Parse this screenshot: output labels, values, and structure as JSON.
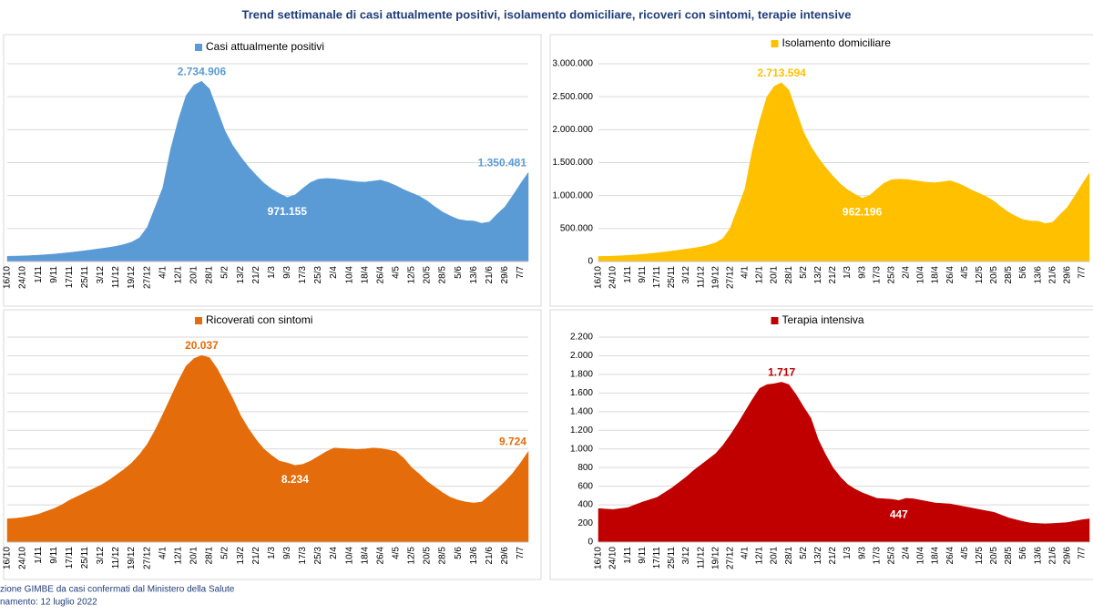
{
  "title": "Trend settimanale di casi attualmente positivi, isolamento domiciliare, ricoveri con sintomi, terapie intensive",
  "footer": {
    "source": "zione GIMBE da casi confermati dal Ministero della Salute",
    "updated": "namento: 12 luglio 2022"
  },
  "chart_data": [
    {
      "type": "area",
      "y_axis_labels": false,
      "grid": true,
      "categories": [
        "16/10",
        null,
        "24/10",
        null,
        "1/11",
        null,
        "9/11",
        null,
        "17/11",
        null,
        "25/11",
        null,
        "3/12",
        null,
        "11/12",
        null,
        "19/12",
        null,
        "27/12",
        null,
        "4/1",
        null,
        "12/1",
        null,
        "20/1",
        null,
        "28/1",
        null,
        "5/2",
        null,
        "13/2",
        null,
        "21/2",
        null,
        "1/3",
        null,
        "9/3",
        null,
        "17/3",
        null,
        "25/3",
        null,
        "2/4",
        null,
        "10/4",
        null,
        "18/4",
        null,
        "26/4",
        null,
        "4/5",
        null,
        "12/5",
        null,
        "20/5",
        null,
        "28/5",
        null,
        "5/6",
        null,
        "13/6",
        null,
        "21/6",
        null,
        "29/6",
        null,
        "7/7",
        null
      ],
      "series": [
        {
          "name": "Casi attualmente positivi",
          "color": "#5b9bd5",
          "values": [
            80000,
            82000,
            85000,
            90000,
            96000,
            104000,
            113000,
            124000,
            136000,
            150000,
            164000,
            180000,
            196000,
            212000,
            232000,
            258000,
            295000,
            360000,
            520000,
            820000,
            1120000,
            1700000,
            2150000,
            2520000,
            2680000,
            2734906,
            2620000,
            2300000,
            1980000,
            1760000,
            1590000,
            1440000,
            1310000,
            1190000,
            1100000,
            1030000,
            971155,
            1010000,
            1110000,
            1200000,
            1250000,
            1260000,
            1255000,
            1240000,
            1225000,
            1210000,
            1205000,
            1220000,
            1235000,
            1200000,
            1150000,
            1090000,
            1040000,
            990000,
            920000,
            830000,
            750000,
            690000,
            640000,
            620000,
            615000,
            580000,
            600000,
            720000,
            830000,
            1000000,
            1180000,
            1350481
          ],
          "value_labels": [
            null,
            null,
            null,
            null,
            null,
            null,
            null,
            null,
            null,
            null,
            null,
            null,
            null,
            null,
            null,
            null,
            null,
            null,
            null,
            null,
            null,
            null,
            null,
            null,
            null,
            "2.734.906",
            null,
            null,
            null,
            null,
            null,
            null,
            null,
            null,
            null,
            null,
            "971.155",
            null,
            null,
            null,
            null,
            null,
            null,
            null,
            null,
            null,
            null,
            null,
            null,
            null,
            null,
            null,
            null,
            null,
            null,
            null,
            null,
            null,
            null,
            null,
            null,
            null,
            null,
            null,
            null,
            null,
            null,
            "1.350.481"
          ]
        }
      ],
      "ylim": [
        0,
        3000000
      ],
      "yticks": [
        0,
        500000,
        1000000,
        1500000,
        2000000,
        2500000,
        3000000
      ]
    },
    {
      "type": "area",
      "y_axis_labels": true,
      "grid": true,
      "categories": [
        "16/10",
        null,
        "24/10",
        null,
        "1/11",
        null,
        "9/11",
        null,
        "17/11",
        null,
        "25/11",
        null,
        "3/12",
        null,
        "11/12",
        null,
        "19/12",
        null,
        "27/12",
        null,
        "4/1",
        null,
        "12/1",
        null,
        "20/1",
        null,
        "28/1",
        null,
        "5/2",
        null,
        "13/2",
        null,
        "21/2",
        null,
        "1/3",
        null,
        "9/3",
        null,
        "17/3",
        null,
        "25/3",
        null,
        "2/4",
        null,
        "10/4",
        null,
        "18/4",
        null,
        "26/4",
        null,
        "4/5",
        null,
        "12/5",
        null,
        "20/5",
        null,
        "28/5",
        null,
        "5/6",
        null,
        "13/6",
        null,
        "21/6",
        null,
        "29/6",
        null,
        "7/7",
        null
      ],
      "series": [
        {
          "name": "Isolamento domiciliare",
          "color": "#ffc000",
          "values": [
            77000,
            79000,
            82000,
            87000,
            93000,
            100000,
            109000,
            119000,
            131000,
            144000,
            158000,
            173000,
            188000,
            204000,
            223000,
            248000,
            285000,
            349000,
            508000,
            806000,
            1104000,
            1682000,
            2130000,
            2500000,
            2660000,
            2713594,
            2600000,
            2282000,
            1963000,
            1744000,
            1575000,
            1427000,
            1298000,
            1179000,
            1090000,
            1021000,
            962196,
            1001000,
            1100000,
            1190000,
            1240000,
            1250000,
            1245000,
            1230000,
            1215000,
            1200000,
            1195000,
            1210000,
            1225000,
            1190000,
            1140000,
            1081000,
            1032000,
            982000,
            913000,
            824000,
            745000,
            685000,
            635000,
            615000,
            611000,
            576000,
            595000,
            714000,
            823000,
            992000,
            1171000,
            1340000
          ],
          "value_labels": [
            null,
            null,
            null,
            null,
            null,
            null,
            null,
            null,
            null,
            null,
            null,
            null,
            null,
            null,
            null,
            null,
            null,
            null,
            null,
            null,
            null,
            null,
            null,
            null,
            null,
            "2.713.594",
            null,
            null,
            null,
            null,
            null,
            null,
            null,
            null,
            null,
            null,
            "962.196",
            null,
            null,
            null,
            null,
            null,
            null,
            null,
            null,
            null,
            null,
            null,
            null,
            null,
            null,
            null,
            null,
            null,
            null,
            null,
            null,
            null,
            null,
            null,
            null,
            null,
            null,
            null,
            null,
            null,
            null,
            null
          ]
        }
      ],
      "ylim": [
        0,
        3000000
      ],
      "yticks": [
        0,
        {
          "value": 500000,
          "label": "500.000"
        },
        {
          "value": 1000000,
          "label": "1.000.000"
        },
        {
          "value": 1500000,
          "label": "1.500.000"
        },
        {
          "value": 2000000,
          "label": "2.000.000"
        },
        {
          "value": 2500000,
          "label": "2.500.000"
        },
        {
          "value": 3000000,
          "label": "3.000.000"
        }
      ]
    },
    {
      "type": "area",
      "y_axis_labels": false,
      "grid": true,
      "categories": [
        "16/10",
        null,
        "24/10",
        null,
        "1/11",
        null,
        "9/11",
        null,
        "17/11",
        null,
        "25/11",
        null,
        "3/12",
        null,
        "11/12",
        null,
        "19/12",
        null,
        "27/12",
        null,
        "4/1",
        null,
        "12/1",
        null,
        "20/1",
        null,
        "28/1",
        null,
        "5/2",
        null,
        "13/2",
        null,
        "21/2",
        null,
        "1/3",
        null,
        "9/3",
        null,
        "17/3",
        null,
        "25/3",
        null,
        "2/4",
        null,
        "10/4",
        null,
        "18/4",
        null,
        "26/4",
        null,
        "4/5",
        null,
        "12/5",
        null,
        "20/5",
        null,
        "28/5",
        null,
        "5/6",
        null,
        "13/6",
        null,
        "21/6",
        null,
        "29/6",
        null,
        "7/7",
        null
      ],
      "series": [
        {
          "name": "Ricoverati con sintomi",
          "color": "#e46c0a",
          "values": [
            2500,
            2550,
            2650,
            2800,
            3000,
            3300,
            3600,
            4000,
            4500,
            4900,
            5300,
            5700,
            6100,
            6600,
            7200,
            7800,
            8500,
            9400,
            10500,
            12000,
            13700,
            15500,
            17300,
            18900,
            19700,
            20037,
            19800,
            18600,
            17000,
            15400,
            13600,
            12200,
            11000,
            10000,
            9300,
            8700,
            8500,
            8234,
            8350,
            8700,
            9200,
            9700,
            10100,
            10050,
            10000,
            9950,
            10000,
            10100,
            10050,
            9900,
            9700,
            9000,
            8000,
            7300,
            6500,
            5900,
            5300,
            4800,
            4500,
            4300,
            4200,
            4300,
            5000,
            5700,
            6500,
            7400,
            8500,
            9724
          ],
          "value_labels": [
            null,
            null,
            null,
            null,
            null,
            null,
            null,
            null,
            null,
            null,
            null,
            null,
            null,
            null,
            null,
            null,
            null,
            null,
            null,
            null,
            null,
            null,
            null,
            null,
            null,
            "20.037",
            null,
            null,
            null,
            null,
            null,
            null,
            null,
            null,
            null,
            null,
            null,
            "8.234",
            null,
            null,
            null,
            null,
            null,
            null,
            null,
            null,
            null,
            null,
            null,
            null,
            null,
            null,
            null,
            null,
            null,
            null,
            null,
            null,
            null,
            null,
            null,
            null,
            null,
            null,
            null,
            null,
            null,
            "9.724"
          ]
        }
      ],
      "ylim": [
        0,
        22000
      ],
      "yticks": [
        0,
        2000,
        4000,
        6000,
        8000,
        10000,
        12000,
        14000,
        16000,
        18000,
        20000,
        22000
      ]
    },
    {
      "type": "area",
      "y_axis_labels": true,
      "grid": true,
      "categories": [
        "16/10",
        null,
        "24/10",
        null,
        "1/11",
        null,
        "9/11",
        null,
        "17/11",
        null,
        "25/11",
        null,
        "3/12",
        null,
        "11/12",
        null,
        "19/12",
        null,
        "27/12",
        null,
        "4/1",
        null,
        "12/1",
        null,
        "20/1",
        null,
        "28/1",
        null,
        "5/2",
        null,
        "13/2",
        null,
        "21/2",
        null,
        "1/3",
        null,
        "9/3",
        null,
        "17/3",
        null,
        "25/3",
        null,
        "2/4",
        null,
        "10/4",
        null,
        "18/4",
        null,
        "26/4",
        null,
        "4/5",
        null,
        "12/5",
        null,
        "20/5",
        null,
        "28/5",
        null,
        "5/6",
        null,
        "13/6",
        null,
        "21/6",
        null,
        "29/6",
        null,
        "7/7",
        null
      ],
      "series": [
        {
          "name": "Terapia intensiva",
          "color": "#c00000",
          "values": [
            360,
            355,
            350,
            360,
            370,
            400,
            430,
            455,
            480,
            530,
            580,
            640,
            700,
            770,
            830,
            890,
            950,
            1040,
            1150,
            1270,
            1400,
            1530,
            1650,
            1690,
            1700,
            1717,
            1690,
            1580,
            1450,
            1330,
            1100,
            940,
            800,
            700,
            620,
            570,
            530,
            500,
            470,
            465,
            460,
            447,
            470,
            465,
            450,
            435,
            420,
            415,
            410,
            395,
            380,
            365,
            350,
            335,
            320,
            290,
            260,
            240,
            220,
            205,
            200,
            195,
            200,
            205,
            210,
            225,
            240,
            250
          ],
          "value_labels": [
            null,
            null,
            null,
            null,
            null,
            null,
            null,
            null,
            null,
            null,
            null,
            null,
            null,
            null,
            null,
            null,
            null,
            null,
            null,
            null,
            null,
            null,
            null,
            null,
            null,
            "1.717",
            null,
            null,
            null,
            null,
            null,
            null,
            null,
            null,
            null,
            null,
            null,
            null,
            null,
            null,
            null,
            "447",
            null,
            null,
            null,
            null,
            null,
            null,
            null,
            null,
            null,
            null,
            null,
            null,
            null,
            null,
            null,
            null,
            null,
            null,
            null,
            null,
            null,
            null,
            null,
            null,
            null,
            null
          ]
        }
      ],
      "ylim": [
        0,
        2200
      ],
      "yticks": [
        0,
        200,
        400,
        600,
        800,
        {
          "value": 1000,
          "label": "1.000"
        },
        {
          "value": 1200,
          "label": "1.200"
        },
        {
          "value": 1400,
          "label": "1.400"
        },
        {
          "value": 1600,
          "label": "1.600"
        },
        {
          "value": 1800,
          "label": "1.800"
        },
        {
          "value": 2000,
          "label": "2.000"
        },
        {
          "value": 2200,
          "label": "2.200"
        }
      ]
    }
  ]
}
